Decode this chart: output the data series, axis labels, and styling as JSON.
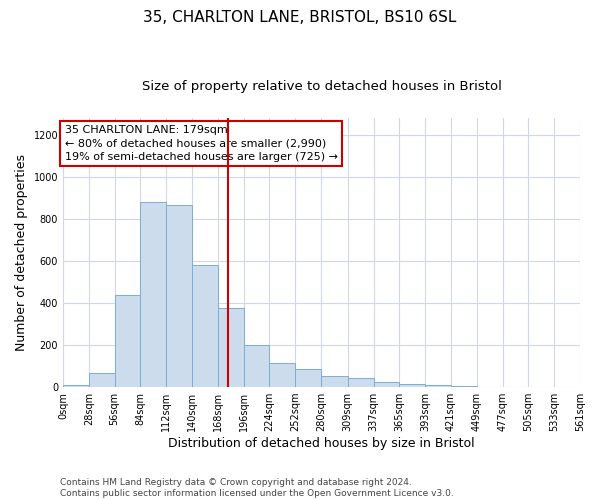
{
  "title_line1": "35, CHARLTON LANE, BRISTOL, BS10 6SL",
  "title_line2": "Size of property relative to detached houses in Bristol",
  "xlabel": "Distribution of detached houses by size in Bristol",
  "ylabel": "Number of detached properties",
  "bin_edges": [
    0,
    28,
    56,
    84,
    112,
    140,
    168,
    196,
    224,
    252,
    280,
    309,
    337,
    365,
    393,
    421,
    449,
    477,
    505,
    533,
    561
  ],
  "bar_heights": [
    12,
    65,
    440,
    880,
    865,
    580,
    375,
    200,
    115,
    85,
    52,
    42,
    22,
    14,
    10,
    5,
    2,
    2,
    1,
    2
  ],
  "bar_color": "#ccdcec",
  "bar_edge_color": "#7baed4",
  "grid_color": "#d0d8e8",
  "vline_x": 179,
  "vline_color": "#cc0000",
  "annotation_text": "35 CHARLTON LANE: 179sqm\n← 80% of detached houses are smaller (2,990)\n19% of semi-detached houses are larger (725) →",
  "annotation_box_color": "#ffffff",
  "annotation_edge_color": "#cc0000",
  "ylim": [
    0,
    1280
  ],
  "yticks": [
    0,
    200,
    400,
    600,
    800,
    1000,
    1200
  ],
  "xlim": [
    0,
    561
  ],
  "background_color": "#ffffff",
  "footer_text": "Contains HM Land Registry data © Crown copyright and database right 2024.\nContains public sector information licensed under the Open Government Licence v3.0.",
  "title_fontsize": 11,
  "subtitle_fontsize": 9.5,
  "axis_label_fontsize": 9,
  "tick_fontsize": 7,
  "footer_fontsize": 6.5,
  "annotation_fontsize": 8
}
